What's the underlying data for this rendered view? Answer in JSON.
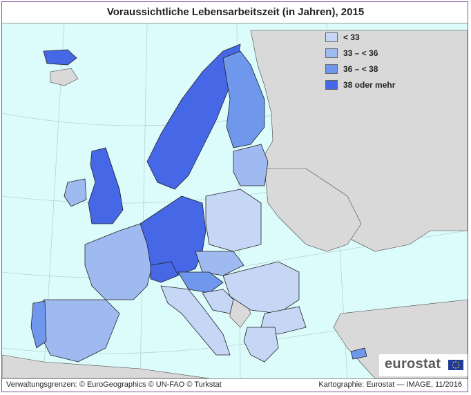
{
  "title": "Voraussichtliche Lebensarbeitszeit (in Jahren), 2015",
  "legend": {
    "items": [
      {
        "label": "< 33",
        "color": "#c6d6f5"
      },
      {
        "label": "33 – < 36",
        "color": "#9fbaf0"
      },
      {
        "label": "36 – < 38",
        "color": "#6f97eb"
      },
      {
        "label": "38 oder mehr",
        "color": "#4667e6"
      }
    ]
  },
  "colors": {
    "sea": "#dcfbfb",
    "non_data": "#d9d9d9",
    "border": "#222222"
  },
  "logo": {
    "text": "eurostat",
    "icon": "eu-flag-icon"
  },
  "footer": {
    "left": "Verwaltungsgrenzen: © EuroGeographics © UN-FAO © Turkstat",
    "right": "Kartographie: Eurostat — IMAGE, 11/2016"
  }
}
